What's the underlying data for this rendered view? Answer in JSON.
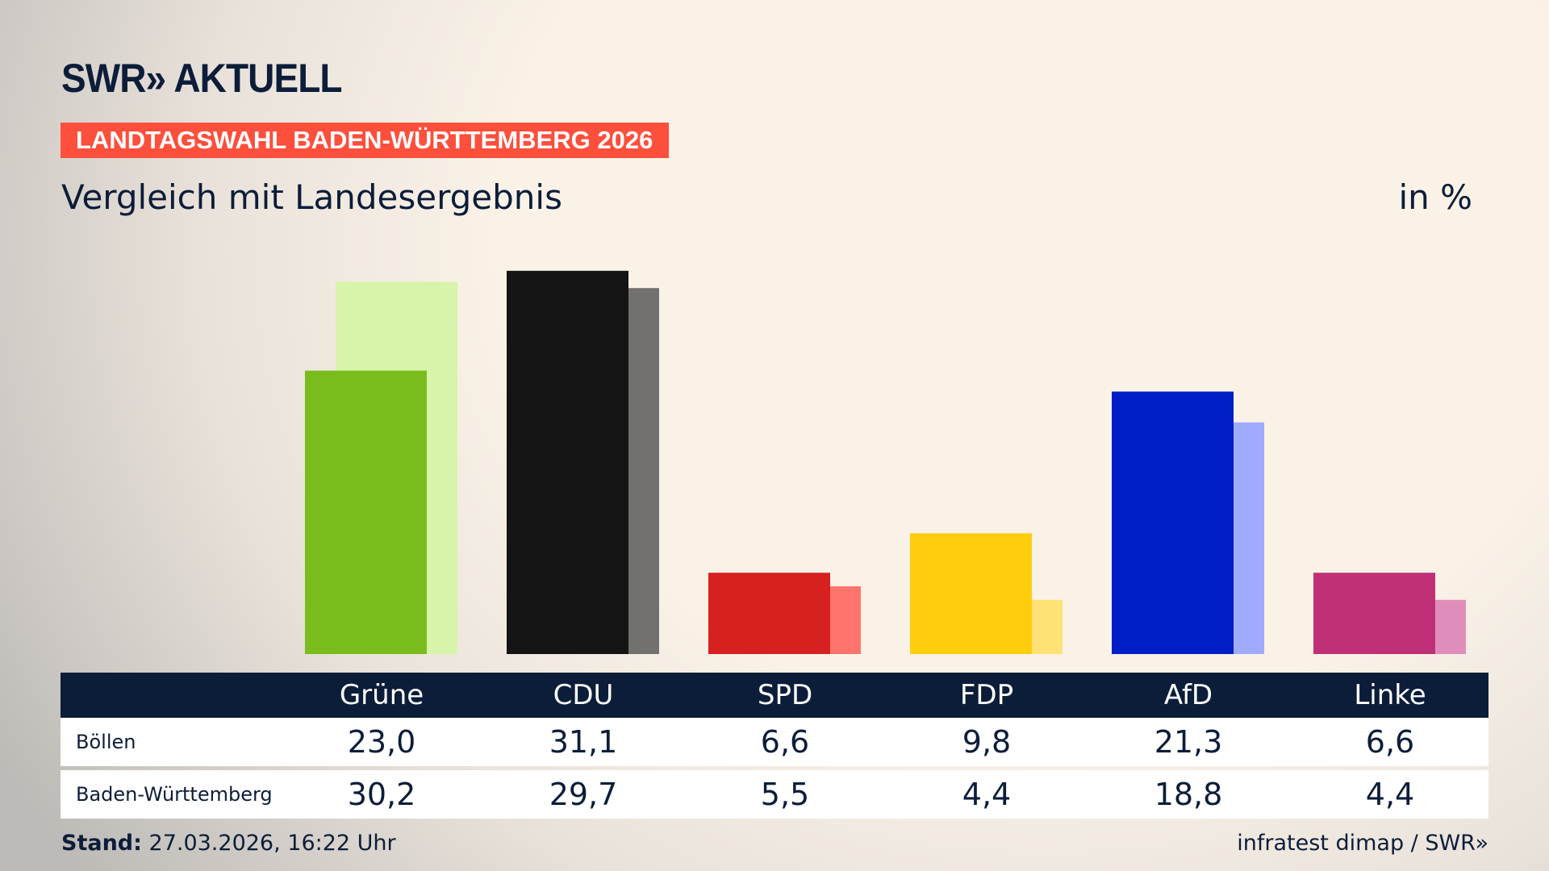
{
  "header": {
    "logo": "SWR» AKTUELL",
    "band": "LANDTAGSWAHL BADEN-WÜRTTEMBERG 2026",
    "subtitle": "Vergleich mit Landesergebnis",
    "unit": "in %"
  },
  "chart_data": {
    "type": "bar",
    "categories": [
      "Grüne",
      "CDU",
      "SPD",
      "FDP",
      "AfD",
      "Linke"
    ],
    "series": [
      {
        "name": "Böllen",
        "values": [
          23.0,
          31.1,
          6.6,
          9.8,
          21.3,
          6.6
        ],
        "colors": [
          "#79bd1d",
          "#141414",
          "#d72020",
          "#ffcd0c",
          "#001ec8",
          "#bf3076"
        ]
      },
      {
        "name": "Baden-Württemberg",
        "values": [
          30.2,
          29.7,
          5.5,
          4.4,
          18.8,
          4.4
        ],
        "colors": [
          "#d7f4aa",
          "#737170",
          "#ff756d",
          "#ffe275",
          "#9eabfe",
          "#df8ebb"
        ]
      }
    ],
    "display_values": [
      [
        "23,0",
        "31,1",
        "6,6",
        "9,8",
        "21,3",
        "6,6"
      ],
      [
        "30,2",
        "29,7",
        "5,5",
        "4,4",
        "18,8",
        "4,4"
      ]
    ],
    "ylim": [
      0,
      31.1
    ]
  },
  "footer": {
    "stand_label": "Stand:",
    "stand_value": "27.03.2026, 16:22 Uhr",
    "source": "infratest dimap / SWR»"
  }
}
